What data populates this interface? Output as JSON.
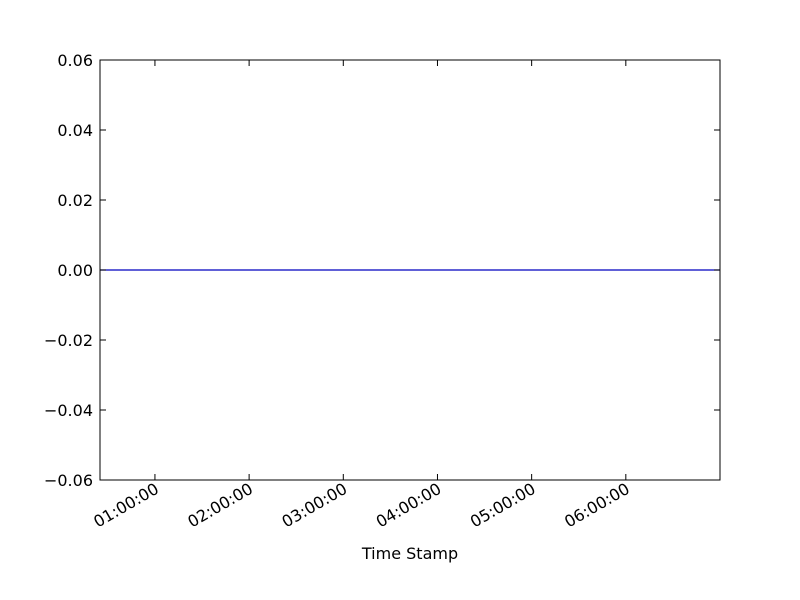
{
  "chart_data": {
    "type": "line",
    "title": "",
    "xlabel": "Time Stamp",
    "ylabel": "",
    "x": [
      "00:25:00",
      "07:00:00"
    ],
    "series": [
      {
        "values": [
          0.0,
          0.0
        ]
      }
    ],
    "xlim": [
      "00:25:00",
      "07:00:00"
    ],
    "ylim": [
      -0.06,
      0.06
    ],
    "xticks": [
      "01:00:00",
      "02:00:00",
      "03:00:00",
      "04:00:00",
      "05:00:00",
      "06:00:00"
    ],
    "yticks": [
      {
        "value": 0.06,
        "label": "0.06"
      },
      {
        "value": 0.04,
        "label": "0.04"
      },
      {
        "value": 0.02,
        "label": "0.02"
      },
      {
        "value": 0.0,
        "label": "0.00"
      },
      {
        "value": -0.02,
        "label": "−0.02"
      },
      {
        "value": -0.04,
        "label": "−0.04"
      },
      {
        "value": -0.06,
        "label": "−0.06"
      }
    ],
    "grid": false,
    "line_color": "#0000bf"
  }
}
